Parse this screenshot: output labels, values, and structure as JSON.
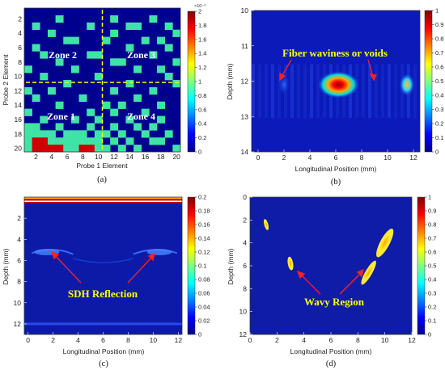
{
  "chart_data": [
    {
      "type": "heatmap",
      "caption": "(a)",
      "xlabel": "Probe 1 Element",
      "ylabel": "Probe 2 Element",
      "x_ticks": [
        "2",
        "4",
        "6",
        "8",
        "10",
        "12",
        "14",
        "16",
        "18",
        "20"
      ],
      "y_ticks": [
        "2",
        "4",
        "6",
        "8",
        "10",
        "12",
        "14",
        "16",
        "18",
        "20"
      ],
      "colorbar_ticks": [
        "0",
        "0.2",
        "0.4",
        "0.6",
        "0.8",
        "1",
        "1.2",
        "1.4",
        "1.6",
        "1.8",
        "2"
      ],
      "colorbar_exponent": "×10⁻³",
      "clim": [
        0,
        0.002
      ],
      "zones": [
        "Zone 2",
        "Zone 3",
        "Zone 1",
        "Zone 4"
      ],
      "grid_size": 20,
      "cells": [
        [
          2,
          5,
          1
        ],
        [
          2,
          12,
          1
        ],
        [
          2,
          17,
          1
        ],
        [
          3,
          2,
          1
        ],
        [
          3,
          9,
          1
        ],
        [
          3,
          14,
          1
        ],
        [
          3,
          15,
          1
        ],
        [
          3,
          19,
          1
        ],
        [
          4,
          4,
          1
        ],
        [
          4,
          12,
          1
        ],
        [
          4,
          20,
          1
        ],
        [
          5,
          6,
          1
        ],
        [
          5,
          7,
          1
        ],
        [
          5,
          11,
          1
        ],
        [
          5,
          16,
          1
        ],
        [
          5,
          18,
          1
        ],
        [
          6,
          2,
          1
        ],
        [
          6,
          14,
          1
        ],
        [
          6,
          19,
          1
        ],
        [
          7,
          3,
          1
        ],
        [
          7,
          9,
          1
        ],
        [
          7,
          10,
          1
        ],
        [
          7,
          17,
          1
        ],
        [
          8,
          5,
          1
        ],
        [
          8,
          12,
          1
        ],
        [
          8,
          13,
          1
        ],
        [
          8,
          20,
          1
        ],
        [
          9,
          1,
          1
        ],
        [
          9,
          7,
          1
        ],
        [
          9,
          15,
          1
        ],
        [
          9,
          18,
          1
        ],
        [
          10,
          3,
          1
        ],
        [
          10,
          10,
          1
        ],
        [
          10,
          19,
          1
        ],
        [
          11,
          6,
          1
        ],
        [
          11,
          14,
          1
        ],
        [
          11,
          20,
          1
        ],
        [
          12,
          1,
          1
        ],
        [
          12,
          4,
          1
        ],
        [
          12,
          12,
          1
        ],
        [
          12,
          17,
          1
        ],
        [
          13,
          2,
          1
        ],
        [
          13,
          8,
          1
        ],
        [
          13,
          15,
          1
        ],
        [
          14,
          5,
          1
        ],
        [
          14,
          11,
          1
        ],
        [
          14,
          13,
          1
        ],
        [
          14,
          18,
          1
        ],
        [
          15,
          1,
          1
        ],
        [
          15,
          9,
          1
        ],
        [
          15,
          12,
          1
        ],
        [
          15,
          16,
          1
        ],
        [
          16,
          3,
          1
        ],
        [
          16,
          7,
          1
        ],
        [
          16,
          10,
          1
        ],
        [
          16,
          14,
          1
        ],
        [
          16,
          18,
          1
        ],
        [
          17,
          1,
          1
        ],
        [
          17,
          2,
          1
        ],
        [
          17,
          5,
          1
        ],
        [
          17,
          9,
          1
        ],
        [
          17,
          12,
          1
        ],
        [
          17,
          15,
          1
        ],
        [
          17,
          17,
          1
        ],
        [
          18,
          1,
          1
        ],
        [
          18,
          2,
          1
        ],
        [
          18,
          3,
          1
        ],
        [
          18,
          4,
          1
        ],
        [
          18,
          6,
          1
        ],
        [
          18,
          7,
          1
        ],
        [
          18,
          8,
          1
        ],
        [
          18,
          10,
          1
        ],
        [
          18,
          11,
          1
        ],
        [
          18,
          13,
          1
        ],
        [
          18,
          16,
          1
        ],
        [
          18,
          19,
          1
        ],
        [
          19,
          1,
          1
        ],
        [
          19,
          2,
          2
        ],
        [
          19,
          3,
          2
        ],
        [
          19,
          4,
          1
        ],
        [
          19,
          5,
          1
        ],
        [
          19,
          6,
          1
        ],
        [
          19,
          7,
          1
        ],
        [
          19,
          8,
          1
        ],
        [
          19,
          9,
          1
        ],
        [
          19,
          10,
          1
        ],
        [
          19,
          12,
          1
        ],
        [
          19,
          14,
          1
        ],
        [
          19,
          17,
          1
        ],
        [
          19,
          18,
          1
        ],
        [
          20,
          1,
          1
        ],
        [
          20,
          2,
          2
        ],
        [
          20,
          3,
          2
        ],
        [
          20,
          4,
          2
        ],
        [
          20,
          5,
          2
        ],
        [
          20,
          6,
          1
        ],
        [
          20,
          7,
          1
        ],
        [
          20,
          8,
          2
        ],
        [
          20,
          9,
          2
        ],
        [
          20,
          10,
          1
        ],
        [
          20,
          11,
          1
        ],
        [
          20,
          13,
          1
        ],
        [
          20,
          15,
          1
        ],
        [
          20,
          20,
          1
        ]
      ]
    },
    {
      "type": "heatmap",
      "caption": "(b)",
      "xlabel": "Longitudinal Position (mm)",
      "ylabel": "Depth (mm)",
      "x_ticks": [
        "0",
        "2",
        "4",
        "6",
        "8",
        "10",
        "12"
      ],
      "y_ticks": [
        "10",
        "11",
        "12",
        "13",
        "14"
      ],
      "xlim": [
        -0.5,
        12.5
      ],
      "ylim": [
        10,
        14
      ],
      "colorbar_ticks": [
        "0",
        "0.1",
        "0.2",
        "0.3",
        "0.4",
        "0.5",
        "0.6",
        "0.7",
        "0.8",
        "0.9",
        "1"
      ],
      "annotation": "Fiber waviness or voids",
      "features": [
        {
          "x": 6.2,
          "depth": 12.1,
          "width_mm": 3.2,
          "height_mm": 0.35,
          "value": 1.0
        },
        {
          "x": 2.0,
          "depth": 12.1,
          "width_mm": 1.0,
          "height_mm": 0.3,
          "value": 0.5
        },
        {
          "x": 11.5,
          "depth": 12.1,
          "width_mm": 1.2,
          "height_mm": 0.3,
          "value": 0.6
        }
      ]
    },
    {
      "type": "heatmap",
      "caption": "(c)",
      "xlabel": "Longitudinal Position (mm)",
      "ylabel": "Depth (mm)",
      "x_ticks": [
        "0",
        "2",
        "4",
        "6",
        "8",
        "10",
        "12"
      ],
      "y_ticks": [
        "2",
        "4",
        "6",
        "8",
        "10",
        "12"
      ],
      "xlim": [
        -0.3,
        12.3
      ],
      "ylim": [
        0,
        13
      ],
      "colorbar_ticks": [
        "0",
        "0.02",
        "0.04",
        "0.06",
        "0.08",
        "0.1",
        "0.12",
        "0.14",
        "0.16",
        "0.18",
        "0.2"
      ],
      "annotation": "SDH Reflection",
      "features": [
        {
          "x": 6.0,
          "depth": 0.2,
          "width_mm": 12.6,
          "height_mm": 0.35,
          "value": 0.2
        },
        {
          "x": 1.5,
          "depth": 5.2,
          "width_mm": 2.0,
          "height_mm": 0.3,
          "value": 0.07
        },
        {
          "x": 10.5,
          "depth": 5.2,
          "width_mm": 2.0,
          "height_mm": 0.3,
          "value": 0.07
        },
        {
          "x": 6.0,
          "depth": 12.0,
          "width_mm": 12.6,
          "height_mm": 0.3,
          "value": 0.04
        }
      ]
    },
    {
      "type": "heatmap",
      "caption": "(d)",
      "xlabel": "Longitudinal Position (mm)",
      "ylabel": "Depth (mm)",
      "x_ticks": [
        "0",
        "2",
        "4",
        "6",
        "8",
        "10",
        "12"
      ],
      "y_ticks": [
        "0",
        "2",
        "4",
        "6",
        "8",
        "10",
        "12"
      ],
      "xlim": [
        0,
        12
      ],
      "ylim": [
        0,
        12
      ],
      "colorbar_ticks": [
        "0",
        "0.1",
        "0.2",
        "0.3",
        "0.4",
        "0.5",
        "0.6",
        "0.7",
        "0.8",
        "0.9",
        "1"
      ],
      "annotation": "Wavy Region",
      "features": [
        {
          "x": 1.2,
          "depth": 2.4,
          "rx_mm": 0.15,
          "ry_mm": 0.5,
          "value": 0.7
        },
        {
          "x": 3.0,
          "depth": 5.8,
          "rx_mm": 0.2,
          "ry_mm": 0.6,
          "value": 0.7
        },
        {
          "x": 8.8,
          "depth": 6.6,
          "rx_mm": 0.25,
          "ry_mm": 1.2,
          "value": 0.75
        },
        {
          "x": 10.0,
          "depth": 4.0,
          "rx_mm": 0.35,
          "ry_mm": 1.4,
          "value": 0.8
        }
      ]
    }
  ]
}
